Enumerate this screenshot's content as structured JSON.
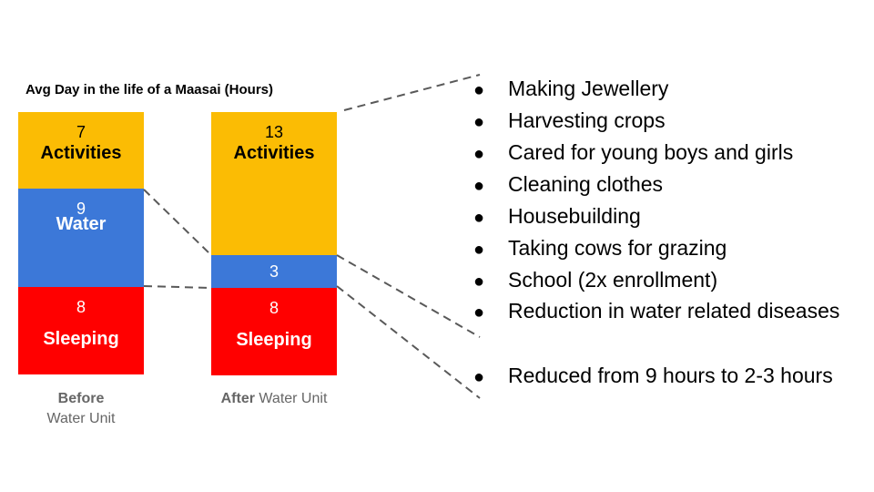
{
  "chart_data": {
    "type": "bar",
    "stacked": true,
    "title": "Avg Day in the life of a Maasai (Hours)",
    "colors": {
      "Activities": "#FBBC04",
      "Water": "#3C78D8",
      "Sleeping": "#FF0000"
    },
    "bars": [
      {
        "label_bold": "Before",
        "label_rest": "Water Unit",
        "segments": [
          {
            "name": "Activities",
            "value": 7,
            "value_text": "7",
            "label_text": "Activities"
          },
          {
            "name": "Water",
            "value": 9,
            "value_text": "9",
            "label_text": "Water"
          },
          {
            "name": "Sleeping",
            "value": 8,
            "value_text": "8",
            "label_text": "Sleeping"
          }
        ]
      },
      {
        "label_bold": "After",
        "label_rest": "Water Unit",
        "segments": [
          {
            "name": "Activities",
            "value": 13,
            "value_text": "13",
            "label_text": "Activities"
          },
          {
            "name": "Water",
            "value": 3,
            "value_text": "3",
            "label_text": ""
          },
          {
            "name": "Sleeping",
            "value": 8,
            "value_text": "8",
            "label_text": "Sleeping"
          }
        ]
      }
    ]
  },
  "bullets": {
    "activities": [
      "Making Jewellery",
      "Harvesting crops",
      "Cared for young boys and girls",
      "Cleaning clothes",
      "Housebuilding",
      "Taking cows for grazing",
      "School (2x enrollment)",
      "Reduction in water related diseases"
    ],
    "water": [
      "Reduced from 9 hours to 2-3 hours"
    ],
    "bullet_char": "●"
  }
}
